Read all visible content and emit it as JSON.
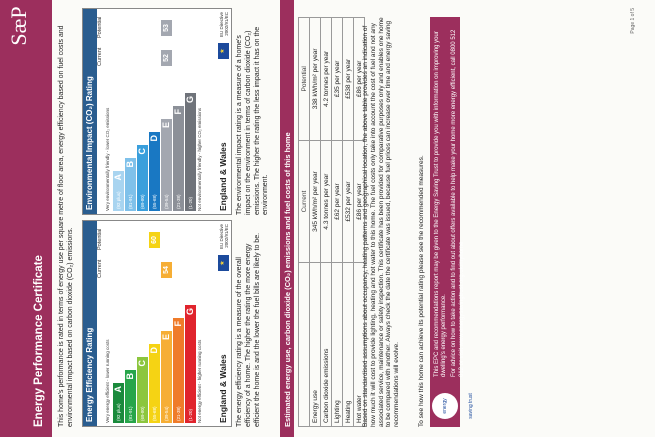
{
  "header": {
    "title": "Energy Performance Certificate",
    "logo": "SæP"
  },
  "intro": "This home's performance is rated in terms of energy use per square metre of floor area, energy efficiency based on fuel costs and environmental impact based on carbon dioxide (CO₂) emissions.",
  "efficiency": {
    "title": "Energy Efficiency Rating",
    "col_current": "Current",
    "col_potential": "Potential",
    "top_note": "Very energy efficient - lower running costs",
    "bottom_note": "Not energy efficient - higher running costs",
    "bands": [
      {
        "range": "(92 plus)",
        "letter": "A",
        "color": "#1a8a3c"
      },
      {
        "range": "(81-91)",
        "letter": "B",
        "color": "#27a54a"
      },
      {
        "range": "(69-80)",
        "letter": "C",
        "color": "#8cc63e"
      },
      {
        "range": "(55-68)",
        "letter": "D",
        "color": "#f5d314"
      },
      {
        "range": "(39-54)",
        "letter": "E",
        "color": "#f6ae35"
      },
      {
        "range": "(21-38)",
        "letter": "F",
        "color": "#ef7b2a"
      },
      {
        "range": "(1-20)",
        "letter": "G",
        "color": "#e0242d"
      }
    ],
    "current": "54",
    "potential": "60",
    "footer": "England & Wales",
    "eu": "EU Directive 2002/91/EC",
    "description": "The energy efficiency rating is a measure of the overall efficiency of a home. The higher the rating the more energy efficient the home is and the lower the fuel bills are likely to be."
  },
  "environment": {
    "title": "Environmental Impact (CO₂) Rating",
    "col_current": "Current",
    "col_potential": "Potential",
    "top_note": "Very environmentally friendly - lower CO₂ emissions",
    "bottom_note": "Not environmentally friendly - higher CO₂ emissions",
    "bands": [
      {
        "range": "(92 plus)",
        "letter": "A",
        "color": "#a8d4f0"
      },
      {
        "range": "(81-91)",
        "letter": "B",
        "color": "#7fc1ea"
      },
      {
        "range": "(69-80)",
        "letter": "C",
        "color": "#3a9fdc"
      },
      {
        "range": "(55-68)",
        "letter": "D",
        "color": "#1978c3"
      },
      {
        "range": "(39-54)",
        "letter": "E",
        "color": "#a3a7b0"
      },
      {
        "range": "(21-38)",
        "letter": "F",
        "color": "#8c9098"
      },
      {
        "range": "(1-20)",
        "letter": "G",
        "color": "#6f737a"
      }
    ],
    "current": "52",
    "potential": "53",
    "footer": "England & Wales",
    "eu": "EU Directive 2002/91/EC",
    "description": "The environmental impact rating is a measure of a home's impact on the environment in terms of carbon dioxide (CO₂) emissions. The higher the rating the less impact it has on the environment."
  },
  "costs": {
    "heading": "Estimated energy use, carbon dioxide (CO₂) emissions and fuel costs of this home",
    "col_current": "Current",
    "col_potential": "Potential",
    "rows": [
      {
        "label": "Energy use",
        "current": "345 kWh/m² per year",
        "potential": "338 kWh/m² per year"
      },
      {
        "label": "Carbon dioxide emissions",
        "current": "4.3 tonnes per year",
        "potential": "4.2 tonnes per year"
      },
      {
        "label": "Lighting",
        "current": "£62 per year",
        "potential": "£35 per year"
      },
      {
        "label": "Heating",
        "current": "£532 per year",
        "potential": "£538 per year"
      },
      {
        "label": "Hot water",
        "current": "£86 per year",
        "potential": "£86 per year"
      }
    ]
  },
  "basis": "Based on standardised assumptions about occupancy, heating patterns and geographical location, the above table provides an indication of how much it will cost to provide lighting, heating and hot water to this home. The fuel costs only take into account the cost of fuel and not any associated service, maintenance or safety inspection. This certificate has been provided for comparative purposes only and enables one home to be compared with another. Always check the date the certificate was issued, because fuel prices can increase over time and energy saving recommendations will evolve.",
  "see_how": "To see how this home can achieve its potential rating please see the recommended measures.",
  "est": {
    "line1": "This EPC and recommendations report may be given to the Energy Saving Trust to provide you with information on improving your dwelling's energy performance.",
    "line2": "For advice on how to take action and to find out about offers available to help make your home more energy efficient, call 0800 512 012 or visit www.energysavingtrust.org.uk/myhome",
    "logo": "energy saving trust"
  },
  "page": "Page 1 of 5"
}
